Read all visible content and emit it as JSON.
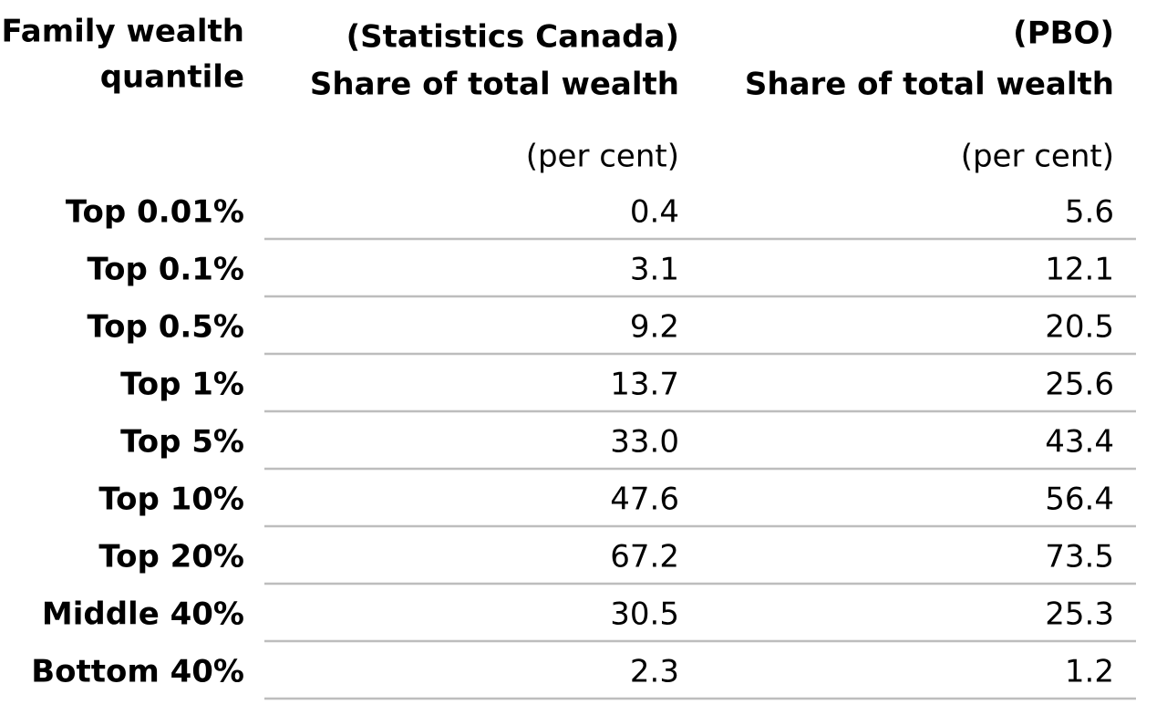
{
  "table": {
    "columns": [
      {
        "lines": [
          "Family wealth",
          "quantile"
        ]
      },
      {
        "lines": [
          "(Statistics Canada)",
          "Share of total wealth"
        ],
        "unit": "(per cent)"
      },
      {
        "lines": [
          "(PBO)",
          "Share of total wealth"
        ],
        "unit": "(per cent)"
      }
    ],
    "rows": [
      [
        "Top 0.01%",
        "0.4",
        "5.6"
      ],
      [
        "Top 0.1%",
        "3.1",
        "12.1"
      ],
      [
        "Top 0.5%",
        "9.2",
        "20.5"
      ],
      [
        "Top 1%",
        "13.7",
        "25.6"
      ],
      [
        "Top 5%",
        "33.0",
        "43.4"
      ],
      [
        "Top 10%",
        "47.6",
        "56.4"
      ],
      [
        "Top 20%",
        "67.2",
        "73.5"
      ],
      [
        "Middle 40%",
        "30.5",
        "25.3"
      ],
      [
        "Bottom 40%",
        "2.3",
        "1.2"
      ]
    ]
  }
}
